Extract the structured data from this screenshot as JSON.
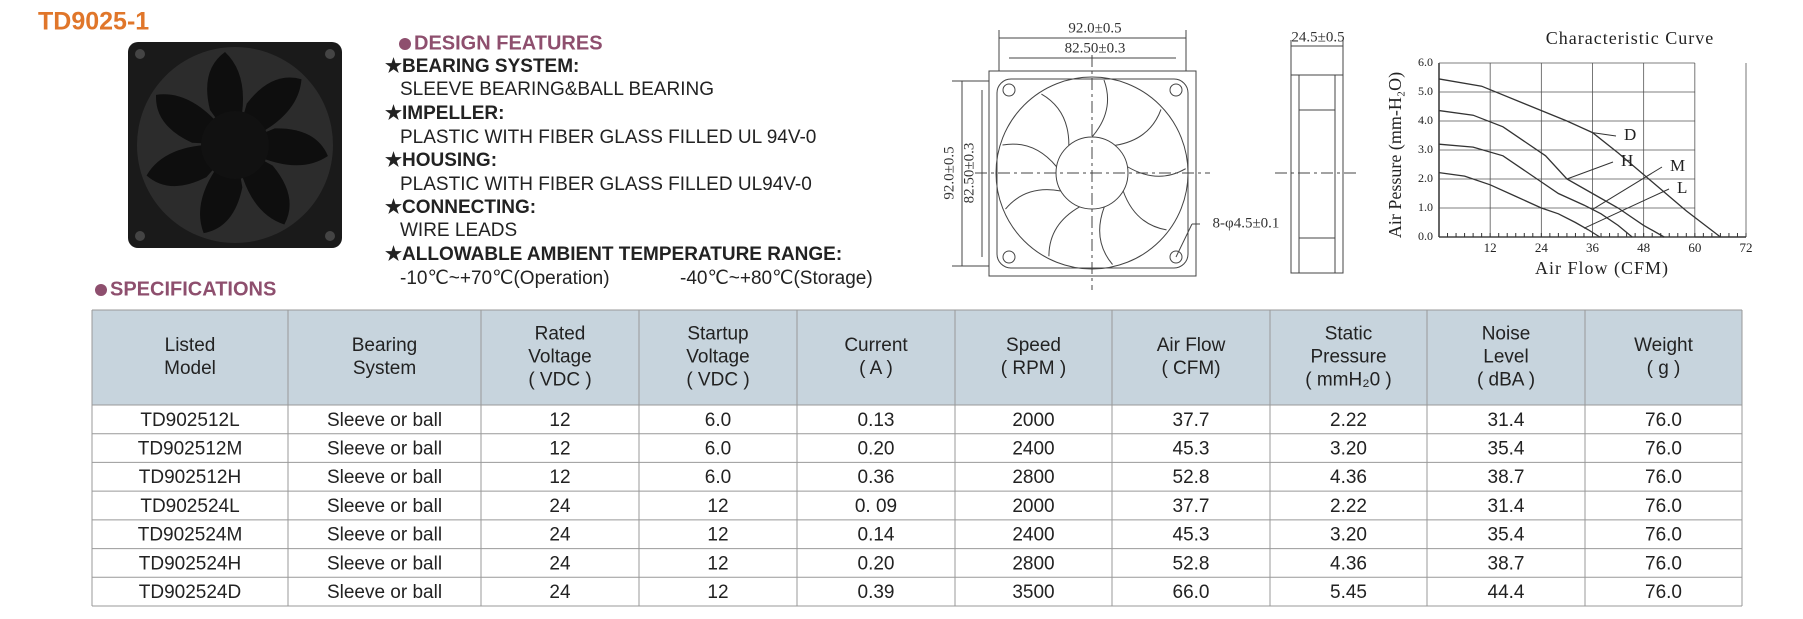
{
  "title": "TD9025-1",
  "features": {
    "title": "DESIGN FEATURES",
    "items": [
      {
        "heading": "★BEARING SYSTEM:",
        "text": [
          "SLEEVE BEARING&BALL BEARING"
        ]
      },
      {
        "heading": "★IMPELLER:",
        "text": [
          "PLASTIC WITH FIBER GLASS FILLED UL 94V-0"
        ]
      },
      {
        "heading": "★HOUSING:",
        "text": [
          "PLASTIC WITH FIBER GLASS FILLED UL94V-0"
        ]
      },
      {
        "heading": "★CONNECTING:",
        "text": [
          "WIRE LEADS"
        ]
      },
      {
        "heading": "★ALLOWABLE AMBIENT TEMPERATURE RANGE:",
        "text": [
          "-10℃~+70℃(Operation)",
          "-40℃~+80℃(Storage)"
        ]
      }
    ]
  },
  "drawing": {
    "front_width": "92.0±0.5",
    "front_inner": "82.50±0.3",
    "front_height": "92.0±0.5",
    "front_inner_height": "82.50±0.3",
    "holes": "8-φ4.5±0.1",
    "depth": "24.5±0.5"
  },
  "chart_data": {
    "type": "line",
    "title": "Characteristic Curve",
    "xlabel": "Air Flow (CFM)",
    "ylabel": "Air Pessure (mm-H₂O)",
    "xlim": [
      0,
      72
    ],
    "ylim": [
      0,
      6
    ],
    "xticks": [
      12,
      24,
      36,
      48,
      60,
      72
    ],
    "yticks": [
      {
        "value": 0,
        "label": "0.0"
      },
      {
        "value": 1,
        "label": "1.0"
      },
      {
        "value": 2,
        "label": "2.0"
      },
      {
        "value": 3,
        "label": "3.0"
      },
      {
        "value": 4,
        "label": "4.0"
      },
      {
        "value": 5,
        "label": "5.0"
      },
      {
        "value": 6,
        "label": "6.0"
      }
    ],
    "grid": true,
    "series": [
      {
        "name": "D",
        "color": "#333333",
        "x": [
          0,
          10,
          20,
          30,
          36,
          42,
          50,
          58,
          66
        ],
        "values": [
          5.45,
          5.2,
          4.6,
          4.0,
          3.6,
          2.9,
          1.9,
          0.9,
          0
        ]
      },
      {
        "name": "H",
        "color": "#333333",
        "x": [
          0,
          8,
          15,
          25,
          30,
          36,
          42,
          48,
          52.8
        ],
        "values": [
          4.36,
          4.2,
          3.8,
          2.8,
          2.0,
          1.5,
          1.0,
          0.4,
          0
        ]
      },
      {
        "name": "M",
        "color": "#333333",
        "x": [
          0,
          8,
          15,
          22,
          28,
          34,
          38,
          42,
          45.3
        ],
        "values": [
          3.2,
          3.1,
          2.8,
          2.1,
          1.5,
          1.1,
          0.8,
          0.4,
          0
        ]
      },
      {
        "name": "L",
        "color": "#333333",
        "x": [
          0,
          6,
          12,
          18,
          24,
          28,
          32,
          35,
          37.7
        ],
        "values": [
          2.22,
          2.1,
          1.8,
          1.4,
          1.0,
          0.8,
          0.5,
          0.25,
          0
        ]
      }
    ]
  },
  "specifications": {
    "title": "SPECIFICATIONS",
    "header": [
      [
        "Listed",
        "Model"
      ],
      [
        "Bearing",
        "System"
      ],
      [
        "Rated",
        "Voltage",
        "( VDC )"
      ],
      [
        "Startup",
        "Voltage",
        "( VDC )"
      ],
      [
        "Current",
        "( A )"
      ],
      [
        "Speed",
        "( RPM )"
      ],
      [
        "Air Flow",
        "( CFM)"
      ],
      [
        "Static",
        "Pressure",
        "( mmH₂0 )"
      ],
      [
        "Noise",
        "Level",
        "( dBA )"
      ],
      [
        "Weight",
        "( g )"
      ]
    ],
    "rows": [
      [
        "TD902512L",
        "Sleeve or ball",
        "12",
        "6.0",
        "0.13",
        "2000",
        "37.7",
        "2.22",
        "31.4",
        "76.0"
      ],
      [
        "TD902512M",
        "Sleeve or ball",
        "12",
        "6.0",
        "0.20",
        "2400",
        "45.3",
        "3.20",
        "35.4",
        "76.0"
      ],
      [
        "TD902512H",
        "Sleeve or ball",
        "12",
        "6.0",
        "0.36",
        "2800",
        "52.8",
        "4.36",
        "38.7",
        "76.0"
      ],
      [
        "TD902524L",
        "Sleeve or ball",
        "24",
        "12",
        "0. 09",
        "2000",
        "37.7",
        "2.22",
        "31.4",
        "76.0"
      ],
      [
        "TD902524M",
        "Sleeve or ball",
        "24",
        "12",
        "0.14",
        "2400",
        "45.3",
        "3.20",
        "35.4",
        "76.0"
      ],
      [
        "TD902524H",
        "Sleeve or ball",
        "24",
        "12",
        "0.20",
        "2800",
        "52.8",
        "4.36",
        "38.7",
        "76.0"
      ],
      [
        "TD902524D",
        "Sleeve or ball",
        "24",
        "12",
        "0.39",
        "3500",
        "66.0",
        "5.45",
        "44.4",
        "76.0"
      ]
    ]
  }
}
